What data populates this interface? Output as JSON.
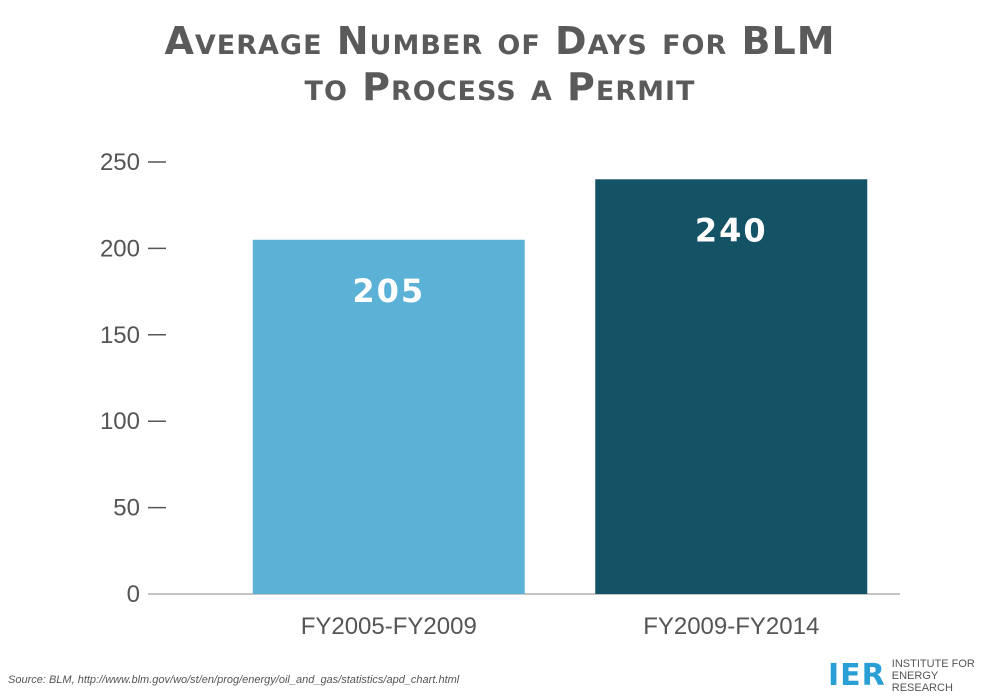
{
  "chart_data": {
    "type": "bar",
    "title_line1": "Average Number of Days for BLM",
    "title_line2": "to Process a Permit",
    "categories": [
      "FY2005-FY2009",
      "FY2009-FY2014"
    ],
    "values": [
      205,
      240
    ],
    "data_labels": [
      "205",
      "240"
    ],
    "colors": [
      "#5bb1d6",
      "#145266"
    ],
    "data_label_color": "#ffffff",
    "ylim": [
      0,
      250
    ],
    "yticks": [
      0,
      50,
      100,
      150,
      200,
      250
    ],
    "grid": false,
    "xlabel": "",
    "ylabel": ""
  },
  "footer": {
    "source": "Source: BLM, http://www.blm.gov/wo/st/en/prog/energy/oil_and_gas/statistics/apd_chart.html",
    "logo_mark": "IER",
    "logo_line1": "Institute for",
    "logo_line2": "Energy Research"
  }
}
